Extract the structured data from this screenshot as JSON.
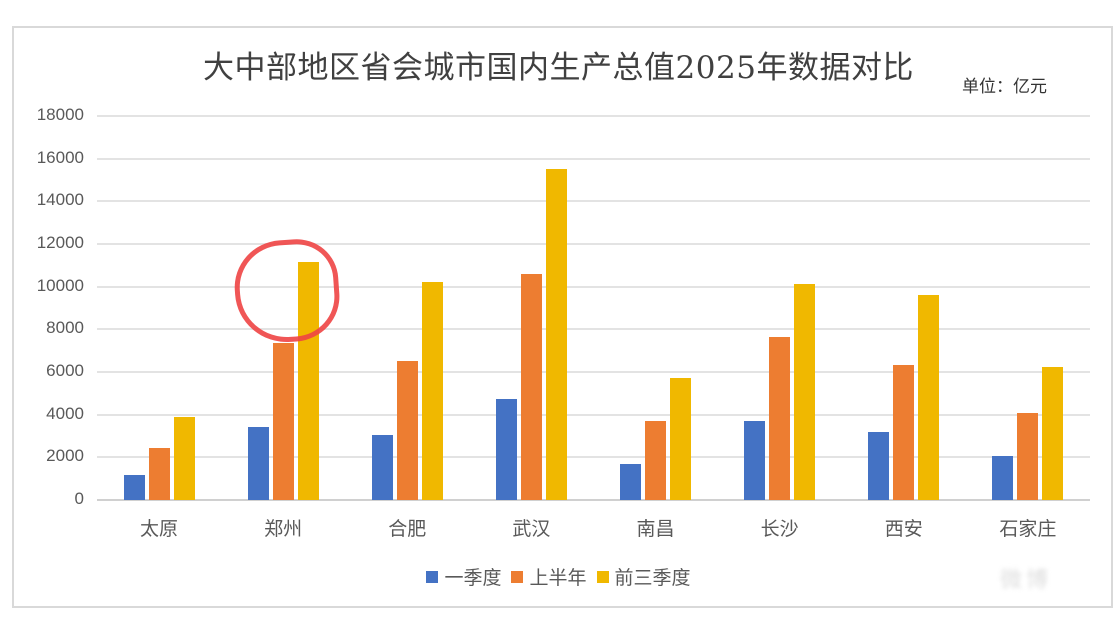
{
  "chart_data": {
    "type": "bar",
    "title": "大中部地区省会城市国内生产总值2025年数据对比",
    "unit_label": "单位：亿元",
    "xlabel": "",
    "ylabel": "",
    "ylim": [
      0,
      18000
    ],
    "yticks": [
      0,
      2000,
      4000,
      6000,
      8000,
      10000,
      12000,
      14000,
      16000,
      18000
    ],
    "grid": true,
    "legend_position": "bottom",
    "categories": [
      "太原",
      "郑州",
      "合肥",
      "武汉",
      "南昌",
      "长沙",
      "西安",
      "石家庄"
    ],
    "series": [
      {
        "name": "一季度",
        "color": "#4472c4",
        "values": [
          1170,
          3420,
          3030,
          4740,
          1690,
          3710,
          3190,
          2060
        ]
      },
      {
        "name": "上半年",
        "color": "#ed7d31",
        "values": [
          2440,
          7360,
          6520,
          10600,
          3710,
          7640,
          6330,
          4080
        ]
      },
      {
        "name": "前三季度",
        "color": "#f0b800",
        "values": [
          3890,
          11160,
          10220,
          15520,
          5720,
          10130,
          9610,
          6240
        ]
      }
    ],
    "annotations": [
      {
        "type": "hand-drawn-circle",
        "color": "#ee4444",
        "target": "郑州 前三季度"
      }
    ]
  },
  "watermark": "微博"
}
